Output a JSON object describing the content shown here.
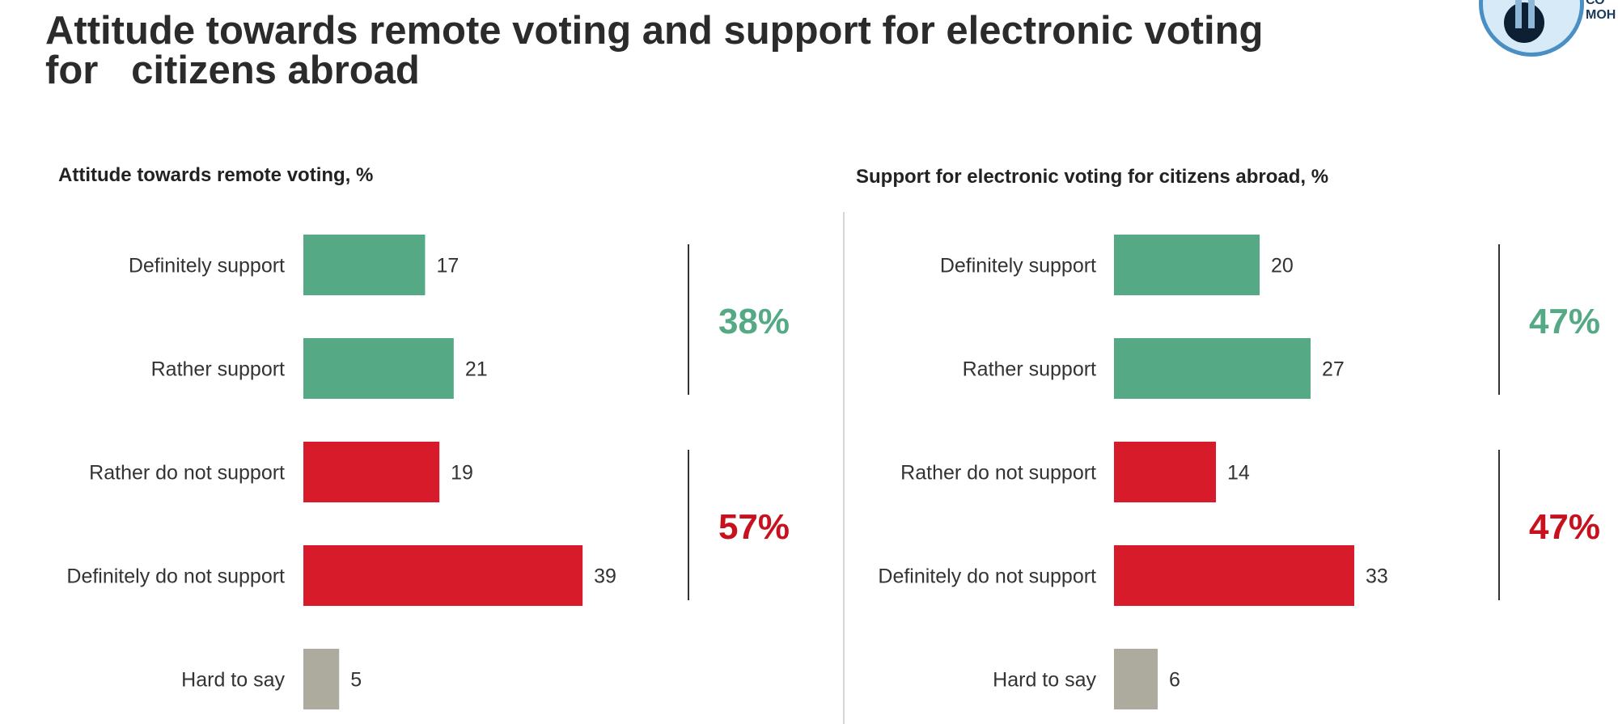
{
  "page": {
    "title_line1": "Attitude towards remote voting and support for electronic voting",
    "title_line2": "for   citizens abroad",
    "logo_text": "СО\nМОН"
  },
  "colors": {
    "support": "#55a985",
    "oppose": "#d81b2b",
    "neutral": "#acab9e",
    "support_total": "#55a985",
    "oppose_total": "#c8111f",
    "bracket": "#333333"
  },
  "chart_data": [
    {
      "type": "bar",
      "orientation": "horizontal",
      "title": "Attitude towards remote voting, %",
      "categories": [
        "Definitely support",
        "Rather support",
        "Rather do not support",
        "Definitely do not support",
        "Hard to say"
      ],
      "values": [
        17,
        21,
        19,
        39,
        5
      ],
      "groups": [
        "support",
        "support",
        "oppose",
        "oppose",
        "neutral"
      ],
      "totals": {
        "support": "38%",
        "oppose": "57%"
      },
      "xlim": [
        0,
        39
      ],
      "grid": false
    },
    {
      "type": "bar",
      "orientation": "horizontal",
      "title": "Support for electronic voting for citizens abroad, %",
      "categories": [
        "Definitely support",
        "Rather support",
        "Rather do not support",
        "Definitely do not support",
        "Hard to say"
      ],
      "values": [
        20,
        27,
        14,
        33,
        6
      ],
      "groups": [
        "support",
        "support",
        "oppose",
        "oppose",
        "neutral"
      ],
      "totals": {
        "support": "47%",
        "oppose": "47%"
      },
      "xlim": [
        0,
        33
      ],
      "grid": false
    }
  ]
}
